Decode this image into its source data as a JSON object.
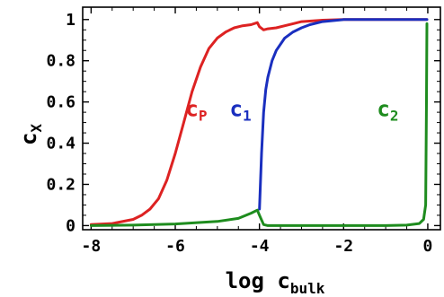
{
  "chart_data": {
    "type": "line",
    "xlabel": {
      "main": "log c",
      "sub": "bulk"
    },
    "ylabel": {
      "main": "c",
      "sub": "X"
    },
    "xlim": [
      -8.2,
      0.3
    ],
    "ylim": [
      -0.02,
      1.06
    ],
    "xticks": [
      -8,
      -6,
      -4,
      -2,
      0
    ],
    "xtick_labels": [
      "-8",
      "-6",
      "-4",
      "-2",
      "0"
    ],
    "yticks": [
      0,
      0.2,
      0.4,
      0.6,
      0.8,
      1
    ],
    "ytick_labels": [
      "0",
      "0.2",
      "0.4",
      "0.6",
      "0.8",
      "1"
    ],
    "grid": false,
    "series": [
      {
        "label_main": "c",
        "label_sub": "P",
        "color": "#dd2222",
        "x": [
          -8,
          -7.5,
          -7,
          -6.8,
          -6.6,
          -6.4,
          -6.2,
          -6,
          -5.8,
          -5.6,
          -5.4,
          -5.2,
          -5,
          -4.8,
          -4.6,
          -4.4,
          -4.2,
          -4.05,
          -4,
          -3.9,
          -3.8,
          -3.6,
          -3.4,
          -3.2,
          -3,
          -2.5,
          -2,
          -1,
          -0.1,
          -0.02
        ],
        "y": [
          0.005,
          0.01,
          0.03,
          0.05,
          0.08,
          0.13,
          0.22,
          0.35,
          0.5,
          0.65,
          0.77,
          0.86,
          0.91,
          0.94,
          0.96,
          0.97,
          0.975,
          0.985,
          0.965,
          0.95,
          0.955,
          0.96,
          0.97,
          0.98,
          0.99,
          0.997,
          1.0,
          1.0,
          1.0,
          1.0
        ],
        "label_pos": [
          -5.5,
          0.53
        ]
      },
      {
        "label_main": "c",
        "label_sub": "1",
        "color": "#1a2fbf",
        "x": [
          -4,
          -3.95,
          -3.9,
          -3.85,
          -3.8,
          -3.7,
          -3.6,
          -3.4,
          -3.2,
          -3,
          -2.8,
          -2.5,
          -2,
          -1.5,
          -1,
          -0.5,
          -0.1,
          -0.02
        ],
        "y": [
          0.08,
          0.35,
          0.55,
          0.66,
          0.72,
          0.8,
          0.85,
          0.91,
          0.94,
          0.96,
          0.975,
          0.99,
          1.0,
          1.0,
          1.0,
          1.0,
          1.0,
          1.0
        ],
        "label_pos": [
          -4.45,
          0.53
        ]
      },
      {
        "label_main": "c",
        "label_sub": "2",
        "color": "#1e8c1e",
        "x": [
          -8,
          -7,
          -6,
          -5,
          -4.5,
          -4.2,
          -4.05,
          -4,
          -3.9,
          -3.8,
          -3,
          -2,
          -1,
          -0.5,
          -0.2,
          -0.1,
          -0.05,
          -0.03,
          -0.02
        ],
        "y": [
          0.0,
          0.002,
          0.008,
          0.02,
          0.035,
          0.06,
          0.075,
          0.05,
          0.005,
          0.0,
          0.0,
          0.0,
          0.0,
          0.002,
          0.01,
          0.03,
          0.1,
          0.6,
          0.98
        ],
        "label_pos": [
          -0.95,
          0.53
        ]
      }
    ]
  }
}
